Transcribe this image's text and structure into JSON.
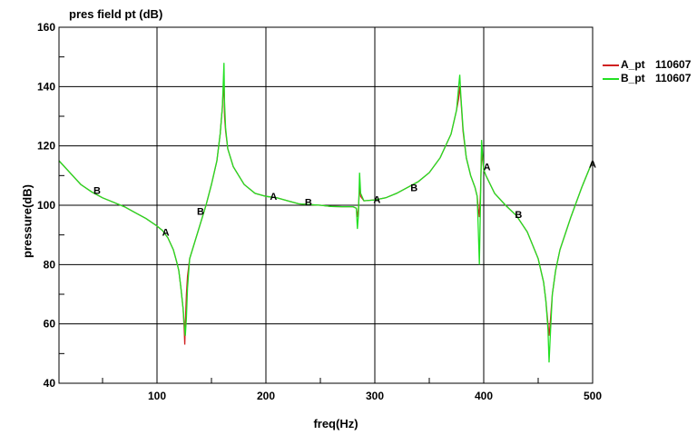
{
  "chart_data": {
    "type": "line",
    "title": "pres field pt (dB)",
    "xlabel": "freq(Hz)",
    "ylabel": "pressure(dB)",
    "xlim": [
      10,
      500
    ],
    "ylim": [
      40,
      160
    ],
    "x_ticks": [
      100,
      200,
      300,
      400,
      500
    ],
    "y_ticks": [
      40,
      60,
      80,
      100,
      120,
      140,
      160
    ],
    "grid": true,
    "legend_position": "top-right",
    "series": [
      {
        "name": "A_pt",
        "legend_value": "110607",
        "color": "#d02020",
        "marker_label": "A",
        "points": [
          [
            10,
            115
          ],
          [
            20,
            111
          ],
          [
            30,
            107
          ],
          [
            40,
            104.5
          ],
          [
            50,
            102.5
          ],
          [
            60,
            101
          ],
          [
            70,
            99.5
          ],
          [
            80,
            97.5
          ],
          [
            90,
            95.5
          ],
          [
            100,
            93
          ],
          [
            105,
            91.5
          ],
          [
            110,
            89
          ],
          [
            115,
            85
          ],
          [
            118,
            81
          ],
          [
            120,
            78
          ],
          [
            122,
            72
          ],
          [
            124,
            65
          ],
          [
            125,
            58
          ],
          [
            125.5,
            53
          ],
          [
            126,
            60
          ],
          [
            127,
            70
          ],
          [
            128,
            76
          ],
          [
            130,
            82
          ],
          [
            135,
            88
          ],
          [
            140,
            94
          ],
          [
            145,
            100
          ],
          [
            150,
            107
          ],
          [
            155,
            115
          ],
          [
            158,
            124
          ],
          [
            160,
            133
          ],
          [
            161,
            140
          ],
          [
            161.5,
            141
          ],
          [
            162,
            130
          ],
          [
            163,
            125
          ],
          [
            165,
            119
          ],
          [
            170,
            113
          ],
          [
            175,
            110
          ],
          [
            180,
            107
          ],
          [
            190,
            104
          ],
          [
            200,
            103
          ],
          [
            210,
            102.5
          ],
          [
            220,
            101.5
          ],
          [
            230,
            100.5
          ],
          [
            240,
            100.2
          ],
          [
            250,
            100
          ],
          [
            260,
            99.6
          ],
          [
            270,
            99.5
          ],
          [
            280,
            99.5
          ],
          [
            283,
            99
          ],
          [
            284,
            96
          ],
          [
            285,
            99
          ],
          [
            286,
            107
          ],
          [
            287,
            103
          ],
          [
            290,
            101.5
          ],
          [
            300,
            101.8
          ],
          [
            310,
            102.5
          ],
          [
            320,
            104
          ],
          [
            330,
            106
          ],
          [
            340,
            108
          ],
          [
            350,
            111
          ],
          [
            360,
            116
          ],
          [
            370,
            124
          ],
          [
            375,
            132
          ],
          [
            377,
            136
          ],
          [
            378,
            140
          ],
          [
            379,
            136
          ],
          [
            381,
            125
          ],
          [
            384,
            116
          ],
          [
            388,
            110
          ],
          [
            392,
            106
          ],
          [
            394,
            103
          ],
          [
            395,
            99
          ],
          [
            396,
            96
          ],
          [
            397,
            104
          ],
          [
            398,
            118
          ],
          [
            399,
            115
          ],
          [
            400,
            112
          ],
          [
            402,
            110
          ],
          [
            410,
            104
          ],
          [
            420,
            100
          ],
          [
            430,
            96.5
          ],
          [
            440,
            91
          ],
          [
            450,
            82
          ],
          [
            455,
            74
          ],
          [
            457,
            68
          ],
          [
            459,
            60
          ],
          [
            460,
            56
          ],
          [
            461,
            60
          ],
          [
            463,
            70
          ],
          [
            466,
            78
          ],
          [
            470,
            85
          ],
          [
            480,
            96
          ],
          [
            490,
            106
          ],
          [
            500,
            115
          ]
        ],
        "labels": [
          [
            108,
            91
          ],
          [
            207,
            103
          ],
          [
            302,
            102
          ],
          [
            403,
            113
          ],
          [
            500,
            114
          ]
        ]
      },
      {
        "name": "B_pt",
        "legend_value": "110607",
        "color": "#22e022",
        "marker_label": "B",
        "points": [
          [
            10,
            115
          ],
          [
            20,
            111
          ],
          [
            30,
            107
          ],
          [
            40,
            104.5
          ],
          [
            50,
            102.5
          ],
          [
            60,
            101
          ],
          [
            70,
            99.5
          ],
          [
            80,
            97.5
          ],
          [
            90,
            95.5
          ],
          [
            100,
            93
          ],
          [
            105,
            91.5
          ],
          [
            110,
            89
          ],
          [
            115,
            85
          ],
          [
            118,
            81
          ],
          [
            120,
            78
          ],
          [
            122,
            72
          ],
          [
            124,
            65
          ],
          [
            125,
            60
          ],
          [
            126,
            56
          ],
          [
            127,
            62
          ],
          [
            128,
            72
          ],
          [
            130,
            82
          ],
          [
            135,
            88
          ],
          [
            140,
            94
          ],
          [
            145,
            100
          ],
          [
            150,
            107
          ],
          [
            155,
            115
          ],
          [
            158,
            124
          ],
          [
            160,
            133
          ],
          [
            161,
            143
          ],
          [
            161.5,
            148
          ],
          [
            162,
            135
          ],
          [
            163,
            126
          ],
          [
            165,
            119
          ],
          [
            170,
            113
          ],
          [
            175,
            110
          ],
          [
            180,
            107
          ],
          [
            190,
            104
          ],
          [
            200,
            103
          ],
          [
            210,
            102.5
          ],
          [
            220,
            101.5
          ],
          [
            230,
            100.5
          ],
          [
            240,
            100.2
          ],
          [
            250,
            100
          ],
          [
            260,
            99.6
          ],
          [
            270,
            99.5
          ],
          [
            280,
            99.5
          ],
          [
            283,
            99
          ],
          [
            284,
            92
          ],
          [
            285,
            97
          ],
          [
            286,
            111
          ],
          [
            287,
            104
          ],
          [
            290,
            101.5
          ],
          [
            300,
            101.8
          ],
          [
            310,
            102.5
          ],
          [
            320,
            104
          ],
          [
            330,
            106
          ],
          [
            340,
            108
          ],
          [
            350,
            111
          ],
          [
            360,
            116
          ],
          [
            370,
            124
          ],
          [
            375,
            132
          ],
          [
            377,
            140
          ],
          [
            378,
            144
          ],
          [
            379,
            137
          ],
          [
            381,
            126
          ],
          [
            384,
            116
          ],
          [
            388,
            110
          ],
          [
            392,
            106
          ],
          [
            394,
            103
          ],
          [
            395,
            92
          ],
          [
            396,
            80
          ],
          [
            397,
            100
          ],
          [
            398,
            122
          ],
          [
            399,
            117
          ],
          [
            400,
            112
          ],
          [
            402,
            110
          ],
          [
            410,
            104
          ],
          [
            420,
            100
          ],
          [
            430,
            96.5
          ],
          [
            440,
            91
          ],
          [
            450,
            82
          ],
          [
            455,
            74
          ],
          [
            457,
            68
          ],
          [
            459,
            58
          ],
          [
            460,
            47
          ],
          [
            461,
            55
          ],
          [
            463,
            70
          ],
          [
            466,
            78
          ],
          [
            470,
            85
          ],
          [
            480,
            96
          ],
          [
            490,
            106
          ],
          [
            500,
            115
          ]
        ],
        "labels": [
          [
            45,
            105
          ],
          [
            140,
            98
          ],
          [
            239,
            101
          ],
          [
            336,
            106
          ],
          [
            432,
            97
          ]
        ]
      }
    ]
  }
}
